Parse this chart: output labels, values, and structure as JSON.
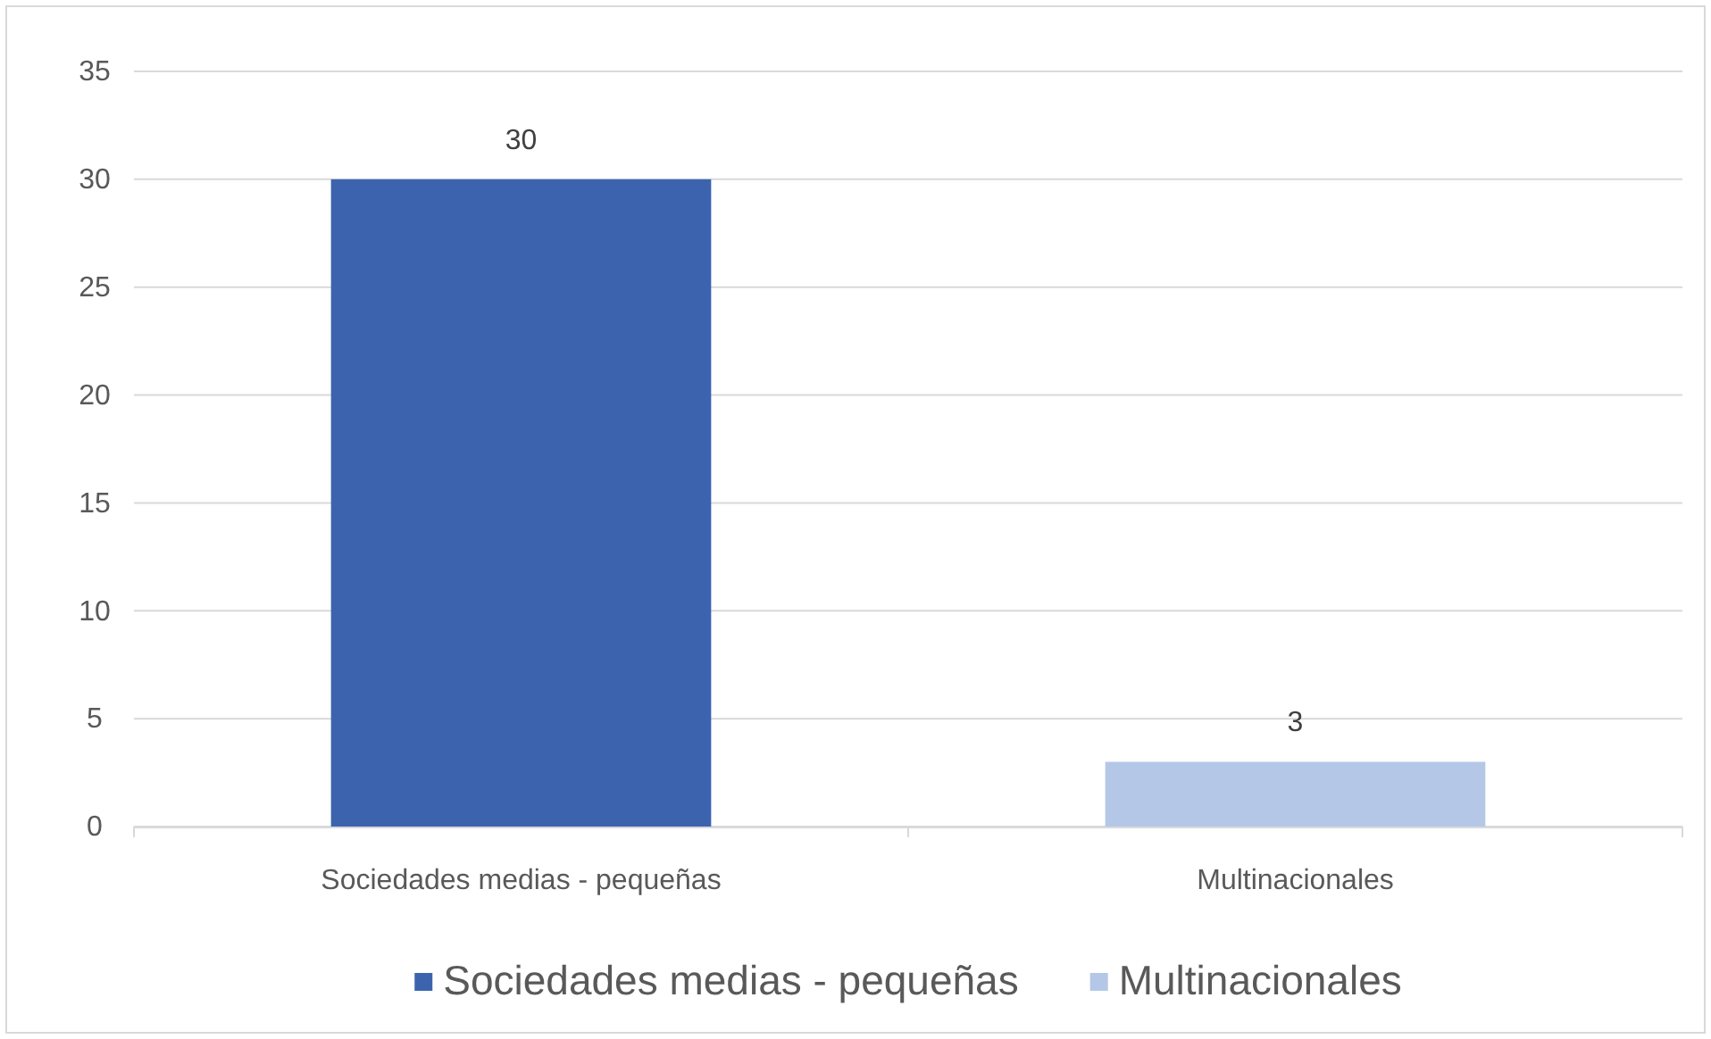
{
  "chart_data": {
    "type": "bar",
    "categories": [
      "Sociedades medias - pequeñas",
      "Multinacionales"
    ],
    "series": [
      {
        "name": "Sociedades medias - pequeñas",
        "color": "#3c64ae",
        "values": [
          30,
          null
        ]
      },
      {
        "name": "Multinacionales",
        "color": "#b4c7e7",
        "values": [
          null,
          3
        ]
      }
    ],
    "ylim": [
      0,
      35
    ],
    "yticks": [
      0,
      5,
      10,
      15,
      20,
      25,
      30,
      35
    ],
    "grid": "y",
    "data_labels": true,
    "legend": "bottom"
  }
}
